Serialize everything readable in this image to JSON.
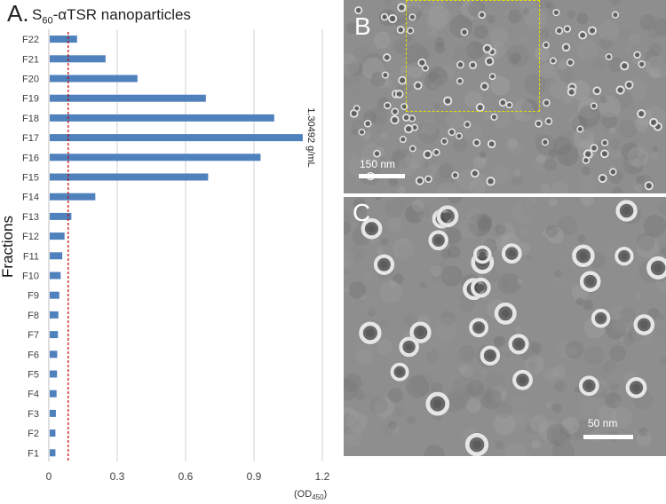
{
  "panel_a": {
    "letter": "A.",
    "title_main": "S",
    "title_sub": "60",
    "title_rest": "-αTSR nanoparticles",
    "unit_main": "(OD",
    "unit_sub": "450",
    "unit_end": ")"
  },
  "chart_data": {
    "type": "bar",
    "orientation": "horizontal",
    "categories": [
      "F1",
      "F2",
      "F3",
      "F4",
      "F5",
      "F6",
      "F7",
      "F8",
      "F9",
      "F10",
      "F11",
      "F12",
      "F13",
      "F14",
      "F15",
      "F16",
      "F17",
      "F18",
      "F19",
      "F20",
      "F21",
      "F22"
    ],
    "values": [
      0.025,
      0.025,
      0.027,
      0.03,
      0.032,
      0.033,
      0.036,
      0.038,
      0.042,
      0.048,
      0.055,
      0.065,
      0.095,
      0.2,
      0.695,
      0.925,
      1.11,
      0.985,
      0.685,
      0.385,
      0.245,
      0.12
    ],
    "xticks": [
      "0",
      "0.3",
      "0.6",
      "0.9",
      "1.2"
    ],
    "xlim": [
      0,
      1.2
    ],
    "ylabel": "Fractions",
    "xlabel": "",
    "reference_line": {
      "value": 0.085,
      "color": "#c00000",
      "style": "dashed"
    },
    "annotation": "1.30492 g/mL",
    "bar_color": "#4f81bd",
    "grid": "vertical"
  },
  "panel_b": {
    "letter": "B",
    "scale_label": "150 nm"
  },
  "panel_c": {
    "letter": "C",
    "scale_label": "50 nm"
  }
}
